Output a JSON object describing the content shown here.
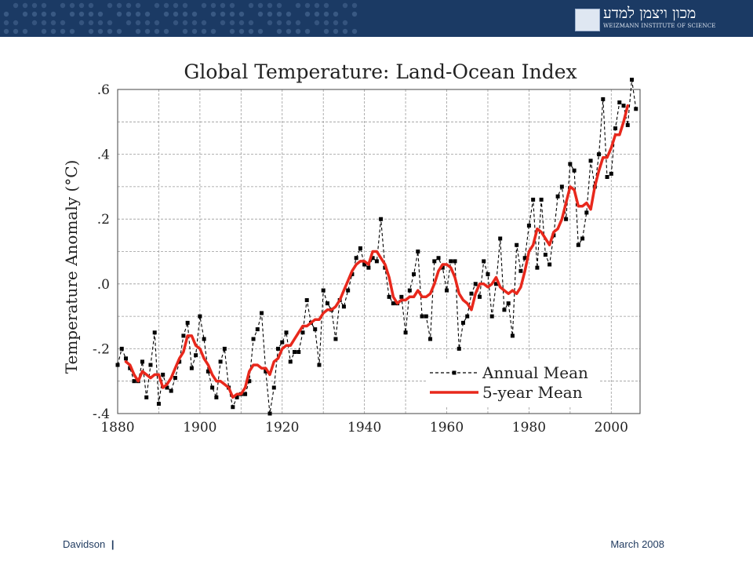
{
  "header": {
    "logo_hebrew": "מכון ויצמן למדע",
    "logo_english": "WEIZMANN INSTITUTE OF SCIENCE",
    "colors": {
      "bar": "#1b3a64",
      "dots": "#4a6a93"
    }
  },
  "footer": {
    "author": "Davidson",
    "separator": "|",
    "date": "March 2008"
  },
  "chart_data": {
    "type": "line",
    "title": "Global Temperature: Land-Ocean Index",
    "ylabel": "Temperature Anomaly (°C)",
    "xlabel": "",
    "xlim": [
      1880,
      2007
    ],
    "ylim": [
      -0.4,
      0.6
    ],
    "x_ticks": [
      1880,
      1900,
      1920,
      1940,
      1960,
      1980,
      2000
    ],
    "y_ticks": [
      -0.4,
      -0.2,
      0.0,
      0.2,
      0.4,
      0.6
    ],
    "y_tick_labels": [
      "-.4",
      "-.2",
      ".0",
      ".2",
      ".4",
      ".6"
    ],
    "grid": true,
    "legend_position": "bottom-right",
    "series": [
      {
        "name": "Annual Mean",
        "color": "#000000",
        "style": "dashed-squares",
        "x": [
          1880,
          1881,
          1882,
          1883,
          1884,
          1885,
          1886,
          1887,
          1888,
          1889,
          1890,
          1891,
          1892,
          1893,
          1894,
          1895,
          1896,
          1897,
          1898,
          1899,
          1900,
          1901,
          1902,
          1903,
          1904,
          1905,
          1906,
          1907,
          1908,
          1909,
          1910,
          1911,
          1912,
          1913,
          1914,
          1915,
          1916,
          1917,
          1918,
          1919,
          1920,
          1921,
          1922,
          1923,
          1924,
          1925,
          1926,
          1927,
          1928,
          1929,
          1930,
          1931,
          1932,
          1933,
          1934,
          1935,
          1936,
          1937,
          1938,
          1939,
          1940,
          1941,
          1942,
          1943,
          1944,
          1945,
          1946,
          1947,
          1948,
          1949,
          1950,
          1951,
          1952,
          1953,
          1954,
          1955,
          1956,
          1957,
          1958,
          1959,
          1960,
          1961,
          1962,
          1963,
          1964,
          1965,
          1966,
          1967,
          1968,
          1969,
          1970,
          1971,
          1972,
          1973,
          1974,
          1975,
          1976,
          1977,
          1978,
          1979,
          1980,
          1981,
          1982,
          1983,
          1984,
          1985,
          1986,
          1987,
          1988,
          1989,
          1990,
          1991,
          1992,
          1993,
          1994,
          1995,
          1996,
          1997,
          1998,
          1999,
          2000,
          2001,
          2002,
          2003,
          2004,
          2005,
          2006
        ],
        "values": [
          -0.25,
          -0.2,
          -0.23,
          -0.26,
          -0.3,
          -0.3,
          -0.24,
          -0.35,
          -0.25,
          -0.15,
          -0.37,
          -0.28,
          -0.32,
          -0.33,
          -0.29,
          -0.24,
          -0.16,
          -0.12,
          -0.26,
          -0.22,
          -0.1,
          -0.17,
          -0.27,
          -0.32,
          -0.35,
          -0.24,
          -0.2,
          -0.32,
          -0.38,
          -0.35,
          -0.34,
          -0.34,
          -0.3,
          -0.17,
          -0.14,
          -0.09,
          -0.27,
          -0.4,
          -0.32,
          -0.2,
          -0.18,
          -0.15,
          -0.24,
          -0.21,
          -0.21,
          -0.15,
          -0.05,
          -0.12,
          -0.14,
          -0.25,
          -0.02,
          -0.06,
          -0.08,
          -0.17,
          -0.05,
          -0.07,
          -0.02,
          0.03,
          0.08,
          0.11,
          0.06,
          0.05,
          0.08,
          0.07,
          0.2,
          0.05,
          -0.04,
          -0.06,
          -0.06,
          -0.04,
          -0.15,
          -0.02,
          0.03,
          0.1,
          -0.1,
          -0.1,
          -0.17,
          0.07,
          0.08,
          0.05,
          -0.02,
          0.07,
          0.07,
          -0.2,
          -0.12,
          -0.1,
          -0.03,
          0.0,
          -0.04,
          0.07,
          0.03,
          -0.1,
          0.0,
          0.14,
          -0.08,
          -0.06,
          -0.16,
          0.12,
          0.04,
          0.08,
          0.18,
          0.26,
          0.05,
          0.26,
          0.09,
          0.06,
          0.15,
          0.27,
          0.3,
          0.2,
          0.37,
          0.35,
          0.12,
          0.14,
          0.22,
          0.38,
          0.3,
          0.4,
          0.57,
          0.33,
          0.34,
          0.48,
          0.56,
          0.55,
          0.49,
          0.63,
          0.54
        ]
      },
      {
        "name": "5-year Mean",
        "color": "#e8281c",
        "style": "thick-solid",
        "x": [
          1882,
          1883,
          1884,
          1885,
          1886,
          1887,
          1888,
          1889,
          1890,
          1891,
          1892,
          1893,
          1894,
          1895,
          1896,
          1897,
          1898,
          1899,
          1900,
          1901,
          1902,
          1903,
          1904,
          1905,
          1906,
          1907,
          1908,
          1909,
          1910,
          1911,
          1912,
          1913,
          1914,
          1915,
          1916,
          1917,
          1918,
          1919,
          1920,
          1921,
          1922,
          1923,
          1924,
          1925,
          1926,
          1927,
          1928,
          1929,
          1930,
          1931,
          1932,
          1933,
          1934,
          1935,
          1936,
          1937,
          1938,
          1939,
          1940,
          1941,
          1942,
          1943,
          1944,
          1945,
          1946,
          1947,
          1948,
          1949,
          1950,
          1951,
          1952,
          1953,
          1954,
          1955,
          1956,
          1957,
          1958,
          1959,
          1960,
          1961,
          1962,
          1963,
          1964,
          1965,
          1966,
          1967,
          1968,
          1969,
          1970,
          1971,
          1972,
          1973,
          1974,
          1975,
          1976,
          1977,
          1978,
          1979,
          1980,
          1981,
          1982,
          1983,
          1984,
          1985,
          1986,
          1987,
          1988,
          1989,
          1990,
          1991,
          1992,
          1993,
          1994,
          1995,
          1996,
          1997,
          1998,
          1999,
          2000,
          2001,
          2002,
          2003,
          2004
        ],
        "values": [
          -0.24,
          -0.25,
          -0.28,
          -0.3,
          -0.27,
          -0.28,
          -0.29,
          -0.28,
          -0.28,
          -0.32,
          -0.31,
          -0.29,
          -0.26,
          -0.23,
          -0.21,
          -0.16,
          -0.16,
          -0.19,
          -0.2,
          -0.23,
          -0.25,
          -0.28,
          -0.3,
          -0.3,
          -0.31,
          -0.32,
          -0.35,
          -0.34,
          -0.34,
          -0.32,
          -0.27,
          -0.25,
          -0.25,
          -0.26,
          -0.26,
          -0.28,
          -0.24,
          -0.23,
          -0.2,
          -0.19,
          -0.19,
          -0.17,
          -0.15,
          -0.13,
          -0.13,
          -0.12,
          -0.11,
          -0.11,
          -0.09,
          -0.08,
          -0.08,
          -0.07,
          -0.05,
          -0.02,
          0.01,
          0.04,
          0.06,
          0.07,
          0.07,
          0.06,
          0.1,
          0.1,
          0.08,
          0.06,
          0.02,
          -0.04,
          -0.06,
          -0.05,
          -0.05,
          -0.04,
          -0.04,
          -0.02,
          -0.04,
          -0.04,
          -0.03,
          0.0,
          0.04,
          0.06,
          0.06,
          0.05,
          0.02,
          -0.03,
          -0.05,
          -0.06,
          -0.08,
          -0.03,
          0.0,
          0.0,
          -0.01,
          0.0,
          0.02,
          -0.01,
          -0.02,
          -0.03,
          -0.02,
          -0.03,
          -0.01,
          0.04,
          0.1,
          0.12,
          0.17,
          0.16,
          0.14,
          0.12,
          0.16,
          0.17,
          0.2,
          0.25,
          0.3,
          0.29,
          0.24,
          0.24,
          0.25,
          0.23,
          0.3,
          0.35,
          0.39,
          0.39,
          0.42,
          0.46,
          0.46,
          0.5,
          0.55
        ]
      }
    ]
  }
}
